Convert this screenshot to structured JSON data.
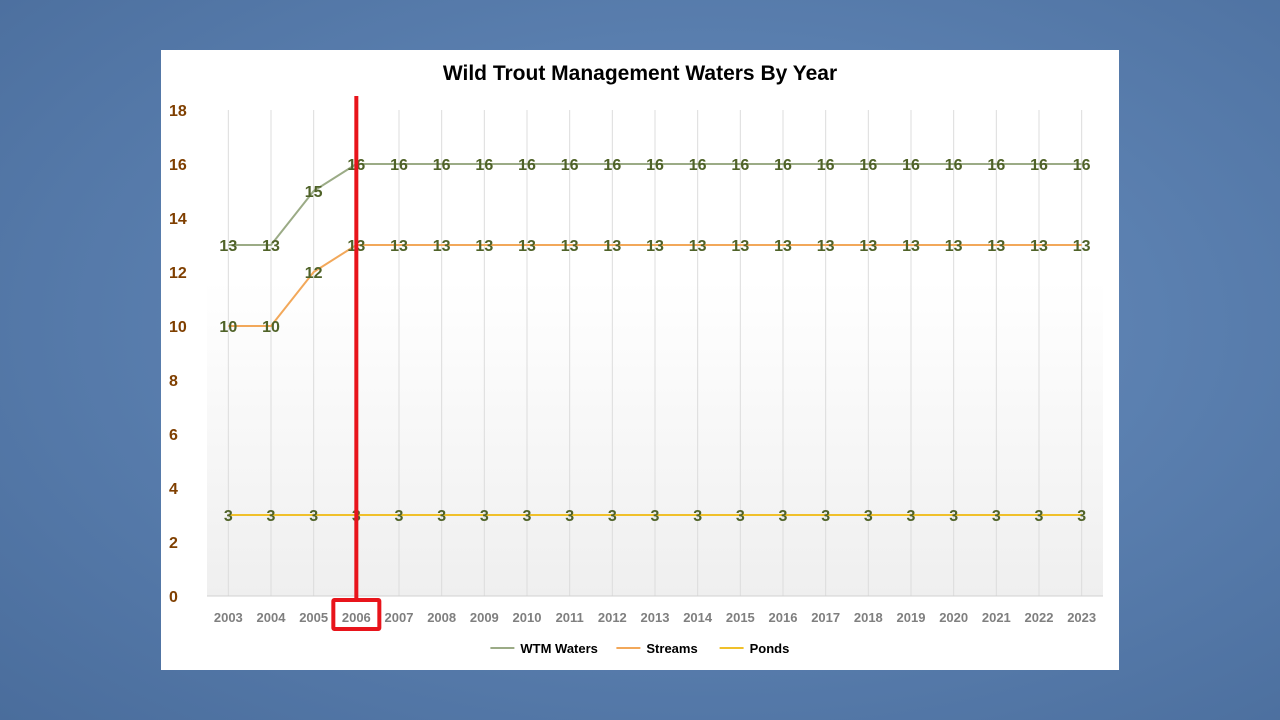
{
  "chart_data": {
    "type": "line",
    "title": "Wild Trout Management Waters By Year",
    "xlabel": "",
    "ylabel": "",
    "categories": [
      "2003",
      "2004",
      "2005",
      "2006",
      "2007",
      "2008",
      "2009",
      "2010",
      "2011",
      "2012",
      "2013",
      "2014",
      "2015",
      "2016",
      "2017",
      "2018",
      "2019",
      "2020",
      "2021",
      "2022",
      "2023"
    ],
    "y_ticks": [
      "0",
      "2",
      "4",
      "6",
      "8",
      "10",
      "12",
      "14",
      "16",
      "18"
    ],
    "ylim": [
      0,
      18
    ],
    "grid": "vertical",
    "legend_position": "bottom",
    "series": [
      {
        "name": "WTM Waters",
        "color": "#9bab86",
        "values": [
          13,
          13,
          15,
          16,
          16,
          16,
          16,
          16,
          16,
          16,
          16,
          16,
          16,
          16,
          16,
          16,
          16,
          16,
          16,
          16,
          16
        ]
      },
      {
        "name": "Streams",
        "color": "#f2a85a",
        "values": [
          10,
          10,
          12,
          13,
          13,
          13,
          13,
          13,
          13,
          13,
          13,
          13,
          13,
          13,
          13,
          13,
          13,
          13,
          13,
          13,
          13
        ]
      },
      {
        "name": "Ponds",
        "color": "#f0c02a",
        "values": [
          3,
          3,
          3,
          3,
          3,
          3,
          3,
          3,
          3,
          3,
          3,
          3,
          3,
          3,
          3,
          3,
          3,
          3,
          3,
          3,
          3
        ]
      }
    ],
    "highlight": {
      "category": "2006",
      "color": "#e8141b"
    }
  }
}
